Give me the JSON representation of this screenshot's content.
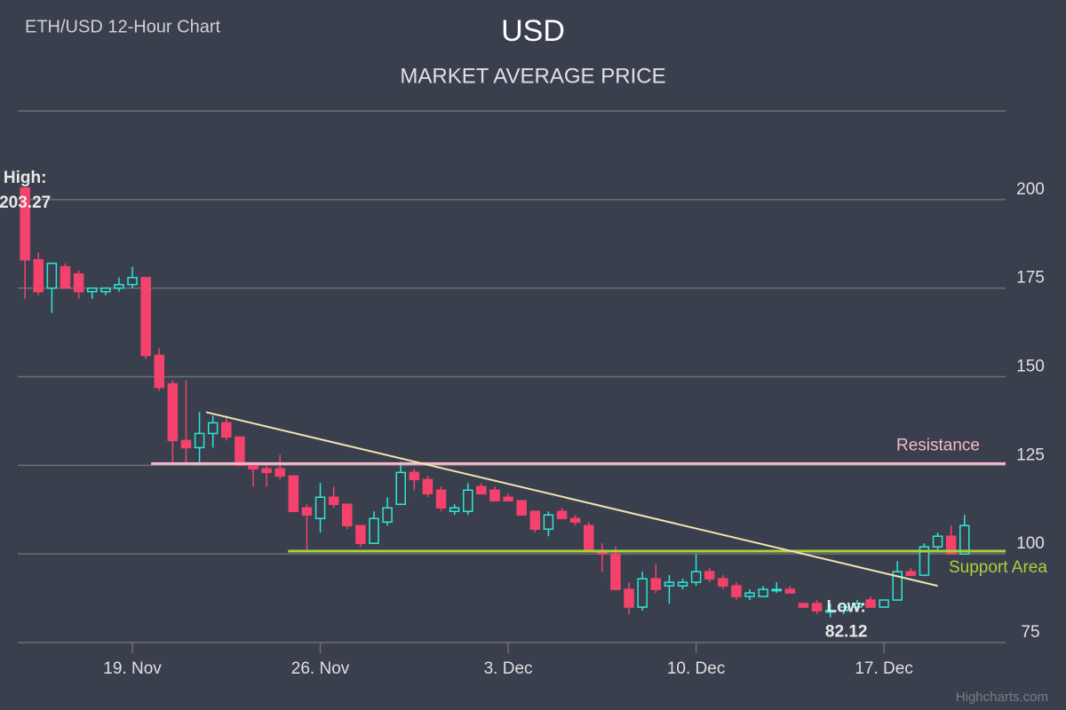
{
  "chart_data": {
    "type": "candlestick",
    "caption": "ETH/USD 12-Hour Chart",
    "title": "USD",
    "subtitle": "MARKET AVERAGE PRICE",
    "credit": "Highcharts.com",
    "up_color": "#2ee6d6",
    "down_color": "#f5426c",
    "xlim": [
      14.73,
      51.53
    ],
    "xticks": [
      {
        "value": 19,
        "label": "19. Nov"
      },
      {
        "value": 26,
        "label": "26. Nov"
      },
      {
        "value": 33,
        "label": "3. Dec"
      },
      {
        "value": 40,
        "label": "10. Dec"
      },
      {
        "value": 47,
        "label": "17. Dec"
      }
    ],
    "ylim": [
      75,
      225
    ],
    "yticks": [
      75,
      100,
      125,
      150,
      175,
      200
    ],
    "grid": true,
    "x": [
      15,
      15.5,
      16,
      16.5,
      17,
      17.5,
      18,
      18.5,
      19,
      19.5,
      20,
      20.5,
      21,
      21.5,
      22,
      22.5,
      23,
      23.5,
      24,
      24.5,
      25,
      25.5,
      26,
      26.5,
      27,
      27.5,
      28,
      28.5,
      29,
      29.5,
      30,
      30.5,
      31,
      31.5,
      32,
      32.5,
      33,
      33.5,
      34,
      34.5,
      35,
      35.5,
      36,
      36.5,
      37,
      37.5,
      38,
      38.5,
      39,
      39.5,
      40,
      40.5,
      41,
      41.5,
      42,
      42.5,
      43,
      43.5,
      44,
      44.5,
      45,
      45.5,
      46,
      46.5,
      47,
      47.5,
      48,
      48.5,
      49,
      49.5,
      50
    ],
    "ohlc": [
      [
        203.27,
        203.27,
        172,
        183
      ],
      [
        183,
        185,
        173,
        174
      ],
      [
        175,
        182,
        168,
        182
      ],
      [
        181,
        182,
        175,
        175
      ],
      [
        179,
        180,
        172,
        174
      ],
      [
        174,
        175,
        172,
        175
      ],
      [
        174,
        175,
        173,
        175
      ],
      [
        175,
        178,
        174,
        176
      ],
      [
        176,
        181,
        175,
        178
      ],
      [
        178,
        178,
        155,
        156
      ],
      [
        156,
        158,
        146,
        147
      ],
      [
        148,
        149,
        125,
        132
      ],
      [
        132,
        149,
        125,
        130
      ],
      [
        130,
        140,
        125,
        134
      ],
      [
        134,
        139,
        130,
        137
      ],
      [
        137,
        139,
        132,
        133
      ],
      [
        133,
        133,
        125,
        125
      ],
      [
        125,
        126,
        119,
        124
      ],
      [
        124,
        125,
        119,
        123
      ],
      [
        124,
        128,
        121,
        122
      ],
      [
        122,
        122,
        112,
        112
      ],
      [
        113,
        114,
        101,
        111
      ],
      [
        110,
        120,
        106,
        116
      ],
      [
        116,
        119,
        113,
        114
      ],
      [
        114,
        114,
        107,
        108
      ],
      [
        108,
        108,
        102,
        103
      ],
      [
        103,
        112,
        103,
        110
      ],
      [
        109,
        116,
        108,
        113
      ],
      [
        114,
        126,
        114,
        123
      ],
      [
        123,
        124,
        118,
        121
      ],
      [
        121,
        122,
        116,
        117
      ],
      [
        118,
        119,
        112,
        113
      ],
      [
        112,
        114,
        111,
        113
      ],
      [
        112,
        120,
        111,
        118
      ],
      [
        119,
        120,
        117,
        117
      ],
      [
        118,
        119,
        115,
        115
      ],
      [
        116,
        117,
        115,
        115
      ],
      [
        115,
        115,
        111,
        111
      ],
      [
        112,
        112,
        106,
        107
      ],
      [
        107,
        112,
        105,
        111
      ],
      [
        112,
        113,
        110,
        110
      ],
      [
        110,
        111,
        108,
        109
      ],
      [
        108,
        109,
        101,
        101
      ],
      [
        101,
        103,
        95,
        100
      ],
      [
        100,
        102,
        90,
        90
      ],
      [
        90,
        92,
        83,
        85
      ],
      [
        85,
        95,
        84,
        93
      ],
      [
        93,
        97,
        89,
        90
      ],
      [
        91,
        94,
        86,
        92
      ],
      [
        91,
        93,
        90,
        92
      ],
      [
        92,
        100,
        91,
        95
      ],
      [
        95,
        96,
        92,
        93
      ],
      [
        93,
        94,
        90,
        91
      ],
      [
        91,
        92,
        87,
        88
      ],
      [
        88,
        90,
        87,
        89
      ],
      [
        88,
        91,
        88,
        90
      ],
      [
        90,
        92,
        89,
        90
      ],
      [
        90,
        91,
        89,
        89
      ],
      [
        86,
        86,
        85,
        85
      ],
      [
        86,
        87,
        83,
        84
      ],
      [
        84,
        86,
        82.12,
        84
      ],
      [
        84,
        85,
        83,
        85
      ],
      [
        85,
        87,
        84,
        86
      ],
      [
        87,
        88,
        85,
        85
      ],
      [
        85,
        87,
        85,
        87
      ],
      [
        87,
        98,
        87,
        95
      ],
      [
        95,
        96,
        94,
        94
      ],
      [
        94,
        103,
        94,
        102
      ],
      [
        102,
        106,
        101,
        105
      ],
      [
        105,
        108,
        100,
        100
      ],
      [
        100,
        111,
        100,
        108
      ]
    ],
    "high_annotation": {
      "label": "High:",
      "x": 15,
      "value": 203.27
    },
    "low_annotation": {
      "label": "Low:",
      "x": 45,
      "value": 82.12
    },
    "resistance": {
      "label": "Resistance",
      "from": 19.7,
      "value": 125.5,
      "color": "#f7b8cb"
    },
    "support": {
      "label": "Support Area",
      "from": 24.8,
      "value": 100.8,
      "color": "#a8d13c"
    },
    "trendline": {
      "from": [
        21.75,
        140
      ],
      "to": [
        49,
        91
      ],
      "color": "#f2e4b0"
    }
  }
}
